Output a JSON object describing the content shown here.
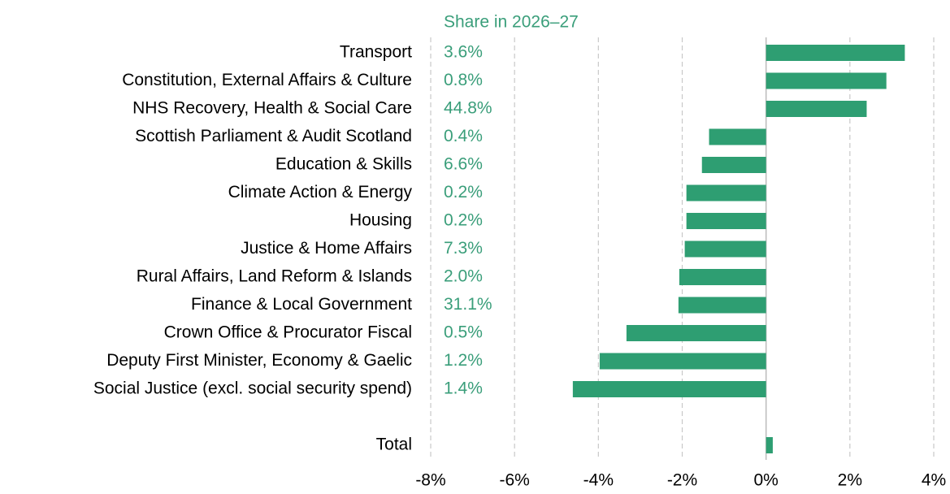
{
  "chart_data": {
    "type": "barh",
    "share_title": "Share in 2026–27",
    "categories": [
      "Transport",
      "Constitution, External Affairs & Culture",
      "NHS Recovery, Health & Social Care",
      "Scottish Parliament &  Audit Scotland",
      "Education & Skills",
      "Climate Action & Energy",
      "Housing",
      "Justice & Home Affairs",
      "Rural Affairs, Land Reform & Islands",
      "Finance & Local Government",
      "Crown Office & Procurator Fiscal",
      "Deputy First Minister, Economy & Gaelic",
      "Social Justice (excl. social security spend)",
      null,
      "Total"
    ],
    "values": [
      3.31,
      2.87,
      2.4,
      -1.36,
      -1.53,
      -1.9,
      -1.9,
      -1.94,
      -2.07,
      -2.09,
      -3.33,
      -3.97,
      -4.61,
      null,
      0.16
    ],
    "share_labels": [
      "3.6%",
      "0.8%",
      "44.8%",
      "0.4%",
      "6.6%",
      "0.2%",
      "0.2%",
      "7.3%",
      "2.0%",
      "31.1%",
      "0.5%",
      "1.2%",
      "1.4%",
      null,
      null
    ],
    "color": "#2e9e72",
    "share_color": "#3a9e7a",
    "xlim": [
      -8,
      4
    ],
    "xticks": [
      {
        "value": -8,
        "label": "-8%"
      },
      {
        "value": -6,
        "label": "-6%"
      },
      {
        "value": -4,
        "label": "-4%"
      },
      {
        "value": -2,
        "label": "-2%"
      },
      {
        "value": 0,
        "label": "0%"
      },
      {
        "value": 2,
        "label": "2%"
      },
      {
        "value": 4,
        "label": "4%"
      }
    ],
    "grid": true
  }
}
